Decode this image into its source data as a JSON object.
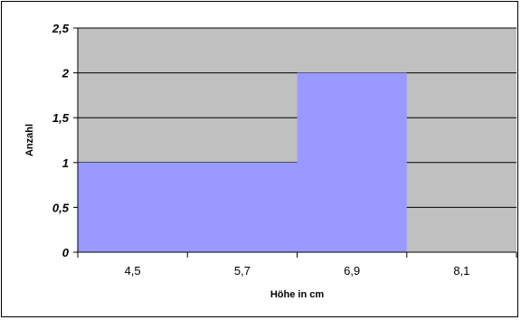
{
  "chart_data": {
    "type": "bar",
    "categories": [
      "4,5",
      "5,7",
      "6,9",
      "8,1"
    ],
    "values": [
      1,
      1,
      2,
      0
    ],
    "bar_layout": "histogram-adjacent",
    "xlabel": "Höhe in cm",
    "ylabel": "Anzahl",
    "ylim": [
      0,
      2.5
    ],
    "yticks": [
      0,
      0.5,
      1,
      1.5,
      2,
      2.5
    ],
    "ytick_labels": [
      "0",
      "0,5",
      "1",
      "1,5",
      "2",
      "2,5"
    ],
    "grid": true,
    "legend": "none",
    "colors": {
      "bar": "#9999ff",
      "plot_background": "#c0c0c0",
      "gridline": "#000000",
      "frame": "#000000"
    }
  }
}
